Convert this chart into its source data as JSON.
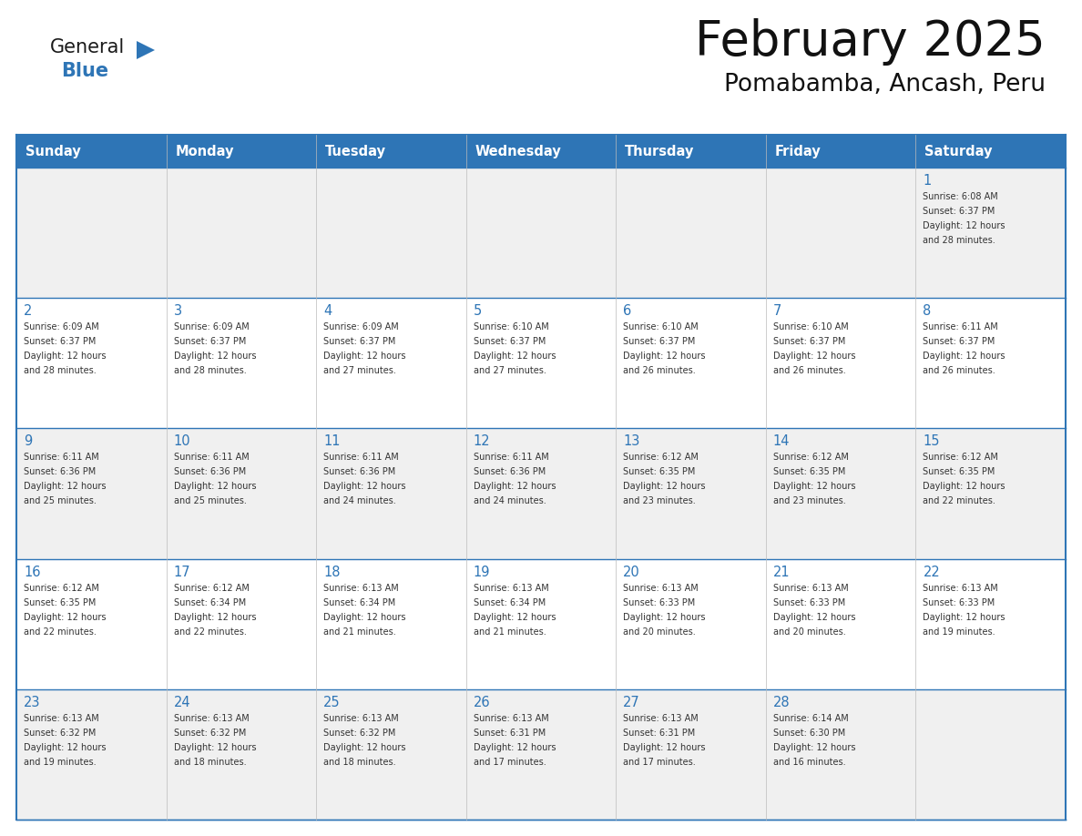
{
  "title": "February 2025",
  "subtitle": "Pomabamba, Ancash, Peru",
  "header_color": "#2E75B6",
  "header_text_color": "#FFFFFF",
  "bg_color": "#FFFFFF",
  "alt_row_color": "#F0F0F0",
  "border_color": "#2E75B6",
  "cell_border_color": "#AAAAAA",
  "day_num_color": "#2E75B6",
  "cell_text_color": "#333333",
  "day_names": [
    "Sunday",
    "Monday",
    "Tuesday",
    "Wednesday",
    "Thursday",
    "Friday",
    "Saturday"
  ],
  "days": [
    {
      "day": 1,
      "col": 6,
      "row": 0,
      "sunrise": "6:08 AM",
      "sunset": "6:37 PM",
      "daylight_hours": 12,
      "daylight_minutes": 28
    },
    {
      "day": 2,
      "col": 0,
      "row": 1,
      "sunrise": "6:09 AM",
      "sunset": "6:37 PM",
      "daylight_hours": 12,
      "daylight_minutes": 28
    },
    {
      "day": 3,
      "col": 1,
      "row": 1,
      "sunrise": "6:09 AM",
      "sunset": "6:37 PM",
      "daylight_hours": 12,
      "daylight_minutes": 28
    },
    {
      "day": 4,
      "col": 2,
      "row": 1,
      "sunrise": "6:09 AM",
      "sunset": "6:37 PM",
      "daylight_hours": 12,
      "daylight_minutes": 27
    },
    {
      "day": 5,
      "col": 3,
      "row": 1,
      "sunrise": "6:10 AM",
      "sunset": "6:37 PM",
      "daylight_hours": 12,
      "daylight_minutes": 27
    },
    {
      "day": 6,
      "col": 4,
      "row": 1,
      "sunrise": "6:10 AM",
      "sunset": "6:37 PM",
      "daylight_hours": 12,
      "daylight_minutes": 26
    },
    {
      "day": 7,
      "col": 5,
      "row": 1,
      "sunrise": "6:10 AM",
      "sunset": "6:37 PM",
      "daylight_hours": 12,
      "daylight_minutes": 26
    },
    {
      "day": 8,
      "col": 6,
      "row": 1,
      "sunrise": "6:11 AM",
      "sunset": "6:37 PM",
      "daylight_hours": 12,
      "daylight_minutes": 26
    },
    {
      "day": 9,
      "col": 0,
      "row": 2,
      "sunrise": "6:11 AM",
      "sunset": "6:36 PM",
      "daylight_hours": 12,
      "daylight_minutes": 25
    },
    {
      "day": 10,
      "col": 1,
      "row": 2,
      "sunrise": "6:11 AM",
      "sunset": "6:36 PM",
      "daylight_hours": 12,
      "daylight_minutes": 25
    },
    {
      "day": 11,
      "col": 2,
      "row": 2,
      "sunrise": "6:11 AM",
      "sunset": "6:36 PM",
      "daylight_hours": 12,
      "daylight_minutes": 24
    },
    {
      "day": 12,
      "col": 3,
      "row": 2,
      "sunrise": "6:11 AM",
      "sunset": "6:36 PM",
      "daylight_hours": 12,
      "daylight_minutes": 24
    },
    {
      "day": 13,
      "col": 4,
      "row": 2,
      "sunrise": "6:12 AM",
      "sunset": "6:35 PM",
      "daylight_hours": 12,
      "daylight_minutes": 23
    },
    {
      "day": 14,
      "col": 5,
      "row": 2,
      "sunrise": "6:12 AM",
      "sunset": "6:35 PM",
      "daylight_hours": 12,
      "daylight_minutes": 23
    },
    {
      "day": 15,
      "col": 6,
      "row": 2,
      "sunrise": "6:12 AM",
      "sunset": "6:35 PM",
      "daylight_hours": 12,
      "daylight_minutes": 22
    },
    {
      "day": 16,
      "col": 0,
      "row": 3,
      "sunrise": "6:12 AM",
      "sunset": "6:35 PM",
      "daylight_hours": 12,
      "daylight_minutes": 22
    },
    {
      "day": 17,
      "col": 1,
      "row": 3,
      "sunrise": "6:12 AM",
      "sunset": "6:34 PM",
      "daylight_hours": 12,
      "daylight_minutes": 22
    },
    {
      "day": 18,
      "col": 2,
      "row": 3,
      "sunrise": "6:13 AM",
      "sunset": "6:34 PM",
      "daylight_hours": 12,
      "daylight_minutes": 21
    },
    {
      "day": 19,
      "col": 3,
      "row": 3,
      "sunrise": "6:13 AM",
      "sunset": "6:34 PM",
      "daylight_hours": 12,
      "daylight_minutes": 21
    },
    {
      "day": 20,
      "col": 4,
      "row": 3,
      "sunrise": "6:13 AM",
      "sunset": "6:33 PM",
      "daylight_hours": 12,
      "daylight_minutes": 20
    },
    {
      "day": 21,
      "col": 5,
      "row": 3,
      "sunrise": "6:13 AM",
      "sunset": "6:33 PM",
      "daylight_hours": 12,
      "daylight_minutes": 20
    },
    {
      "day": 22,
      "col": 6,
      "row": 3,
      "sunrise": "6:13 AM",
      "sunset": "6:33 PM",
      "daylight_hours": 12,
      "daylight_minutes": 19
    },
    {
      "day": 23,
      "col": 0,
      "row": 4,
      "sunrise": "6:13 AM",
      "sunset": "6:32 PM",
      "daylight_hours": 12,
      "daylight_minutes": 19
    },
    {
      "day": 24,
      "col": 1,
      "row": 4,
      "sunrise": "6:13 AM",
      "sunset": "6:32 PM",
      "daylight_hours": 12,
      "daylight_minutes": 18
    },
    {
      "day": 25,
      "col": 2,
      "row": 4,
      "sunrise": "6:13 AM",
      "sunset": "6:32 PM",
      "daylight_hours": 12,
      "daylight_minutes": 18
    },
    {
      "day": 26,
      "col": 3,
      "row": 4,
      "sunrise": "6:13 AM",
      "sunset": "6:31 PM",
      "daylight_hours": 12,
      "daylight_minutes": 17
    },
    {
      "day": 27,
      "col": 4,
      "row": 4,
      "sunrise": "6:13 AM",
      "sunset": "6:31 PM",
      "daylight_hours": 12,
      "daylight_minutes": 17
    },
    {
      "day": 28,
      "col": 5,
      "row": 4,
      "sunrise": "6:14 AM",
      "sunset": "6:30 PM",
      "daylight_hours": 12,
      "daylight_minutes": 16
    }
  ],
  "num_rows": 5,
  "num_cols": 7,
  "logo_general_color": "#1a1a1a",
  "logo_blue_color": "#2E75B6",
  "logo_triangle_color": "#2E75B6"
}
